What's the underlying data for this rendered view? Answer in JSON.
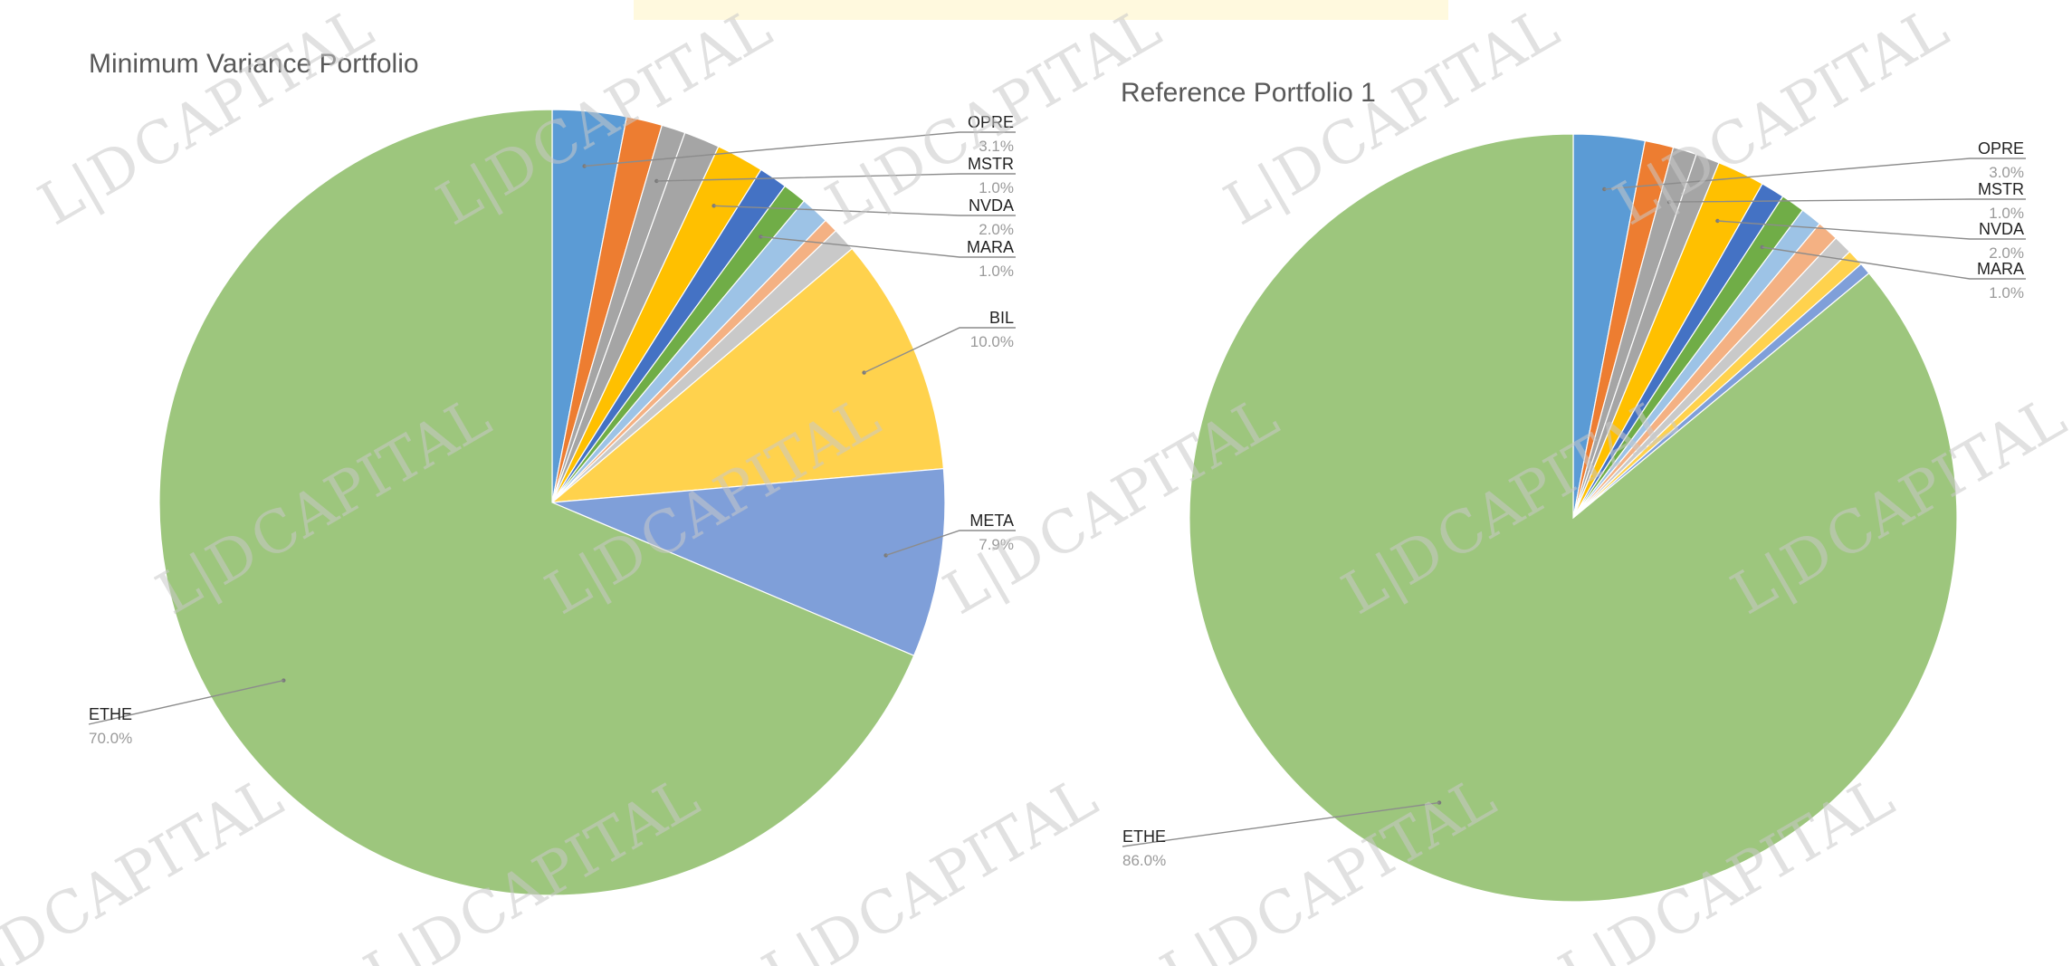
{
  "watermark_text": "CAPITAL",
  "watermark_logo_text": "L|D",
  "chart_data": [
    {
      "type": "pie",
      "title": "Minimum Variance Portfolio",
      "slices": [
        {
          "label": "OPRE",
          "value": 3.1,
          "color": "#5b9bd5",
          "labeled": true
        },
        {
          "label": "",
          "value": 1.5,
          "color": "#ed7d31",
          "labeled": false
        },
        {
          "label": "MSTR",
          "value": 1.0,
          "color": "#a5a5a5",
          "labeled": true
        },
        {
          "label": "",
          "value": 1.5,
          "color": "#a5a5a5",
          "labeled": false
        },
        {
          "label": "NVDA",
          "value": 2.0,
          "color": "#ffc000",
          "labeled": true
        },
        {
          "label": "",
          "value": 1.2,
          "color": "#4472c4",
          "labeled": false
        },
        {
          "label": "MARA",
          "value": 1.0,
          "color": "#70ad47",
          "labeled": true
        },
        {
          "label": "",
          "value": 1.2,
          "color": "#9dc3e6",
          "labeled": false
        },
        {
          "label": "",
          "value": 0.6,
          "color": "#f4b183",
          "labeled": false
        },
        {
          "label": "",
          "value": 1.0,
          "color": "#c9c9c9",
          "labeled": false
        },
        {
          "label": "BIL",
          "value": 10.0,
          "color": "#ffd24d",
          "labeled": true
        },
        {
          "label": "META",
          "value": 7.9,
          "color": "#7f9fd9",
          "labeled": true
        },
        {
          "label": "ETHE",
          "value": 70.0,
          "color": "#9dc67d",
          "labeled": true
        }
      ],
      "labels": [
        {
          "name": "OPRE",
          "value": "3.1%"
        },
        {
          "name": "MSTR",
          "value": "1.0%"
        },
        {
          "name": "NVDA",
          "value": "2.0%"
        },
        {
          "name": "MARA",
          "value": "1.0%"
        },
        {
          "name": "BIL",
          "value": "10.0%"
        },
        {
          "name": "META",
          "value": "7.9%"
        },
        {
          "name": "ETHE",
          "value": "70.0%"
        }
      ]
    },
    {
      "type": "pie",
      "title": "Reference Portfolio 1",
      "slices": [
        {
          "label": "OPRE",
          "value": 3.0,
          "color": "#5b9bd5",
          "labeled": true
        },
        {
          "label": "",
          "value": 1.2,
          "color": "#ed7d31",
          "labeled": false
        },
        {
          "label": "MSTR",
          "value": 1.0,
          "color": "#a5a5a5",
          "labeled": true
        },
        {
          "label": "",
          "value": 1.0,
          "color": "#a5a5a5",
          "labeled": false
        },
        {
          "label": "NVDA",
          "value": 2.0,
          "color": "#ffc000",
          "labeled": true
        },
        {
          "label": "",
          "value": 1.0,
          "color": "#4472c4",
          "labeled": false
        },
        {
          "label": "MARA",
          "value": 1.0,
          "color": "#70ad47",
          "labeled": true
        },
        {
          "label": "",
          "value": 0.9,
          "color": "#9dc3e6",
          "labeled": false
        },
        {
          "label": "",
          "value": 0.9,
          "color": "#f4b183",
          "labeled": false
        },
        {
          "label": "",
          "value": 0.8,
          "color": "#c9c9c9",
          "labeled": false
        },
        {
          "label": "",
          "value": 0.7,
          "color": "#ffd24d",
          "labeled": false
        },
        {
          "label": "",
          "value": 0.5,
          "color": "#7f9fd9",
          "labeled": false
        },
        {
          "label": "ETHE",
          "value": 86.0,
          "color": "#9dc67d",
          "labeled": true
        }
      ],
      "labels": [
        {
          "name": "OPRE",
          "value": "3.0%"
        },
        {
          "name": "MSTR",
          "value": "1.0%"
        },
        {
          "name": "NVDA",
          "value": "2.0%"
        },
        {
          "name": "MARA",
          "value": "1.0%"
        },
        {
          "name": "ETHE",
          "value": "86.0%"
        }
      ]
    }
  ]
}
